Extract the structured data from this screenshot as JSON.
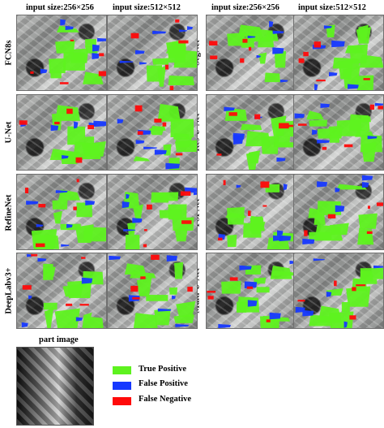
{
  "column_headers": {
    "left_256": "input size:256×256",
    "left_512": "input size:512×512",
    "right_256": "input size:256×256",
    "right_512": "input size:512×512"
  },
  "left_models": [
    "FCN8s",
    "U-Net",
    "RefineNet",
    "DeepLabv3+"
  ],
  "right_models": [
    "SegNet",
    "Res-U-Net",
    "PSPNet",
    "Multi-U-Net"
  ],
  "part_image_label": "part image",
  "legend": [
    {
      "label": "True Positive",
      "color": "#5ef21f"
    },
    {
      "label": "False Positive",
      "color": "#1638ff"
    },
    {
      "label": "False Negative",
      "color": "#ff0a0a"
    }
  ],
  "colors": {
    "true_positive": "#5ef21f",
    "false_positive": "#1638ff",
    "false_negative": "#ff0a0a"
  }
}
